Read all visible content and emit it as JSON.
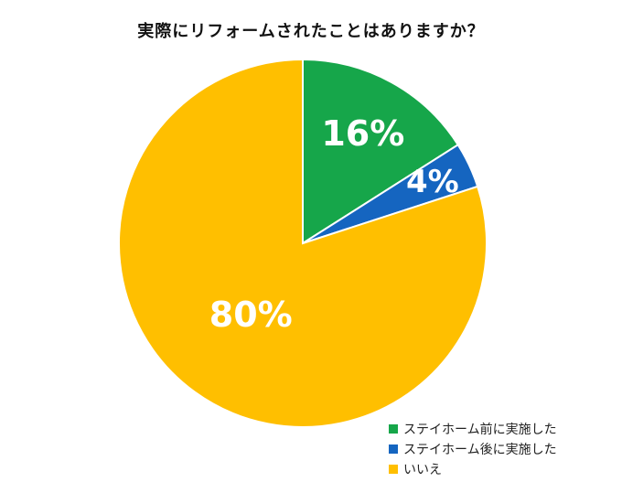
{
  "chart_data": {
    "type": "pie",
    "title": "実際にリフォームされたことはありますか？",
    "slices": [
      {
        "label": "ステイホーム前に実施した",
        "value": 16,
        "display": "16%",
        "color": "#16a64a"
      },
      {
        "label": "ステイホーム後に実施した",
        "value": 4,
        "display": "4%",
        "color": "#1565c0"
      },
      {
        "label": "いいえ",
        "value": 80,
        "display": "80%",
        "color": "#ffbf00"
      }
    ],
    "legend_position": "bottom-right"
  }
}
